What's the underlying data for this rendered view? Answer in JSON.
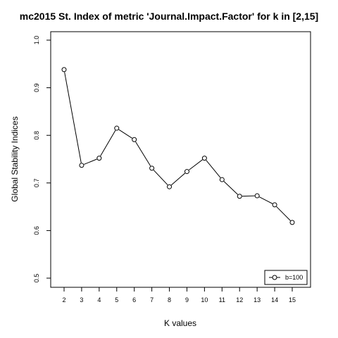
{
  "chart_data": {
    "type": "line",
    "title": "mc2015 St. Index of metric 'Journal.Impact.Factor' for k in [2,15]",
    "xlabel": "K values",
    "ylabel": "Global Stability Indices",
    "x": [
      2,
      3,
      4,
      5,
      6,
      7,
      8,
      9,
      10,
      11,
      12,
      13,
      14,
      15
    ],
    "x_tick_labels": [
      "2",
      "3",
      "4",
      "5",
      "6",
      "7",
      "8",
      "9",
      "10",
      "11",
      "12",
      "13",
      "14",
      "15"
    ],
    "series": [
      {
        "name": "b=100",
        "values": [
          0.938,
          0.737,
          0.752,
          0.815,
          0.791,
          0.731,
          0.692,
          0.724,
          0.752,
          0.707,
          0.672,
          0.673,
          0.654,
          0.617
        ]
      }
    ],
    "ylim": [
      0.5,
      1.0
    ],
    "y_ticks": [
      0.5,
      0.6,
      0.7,
      0.8,
      0.9,
      1.0
    ],
    "y_tick_labels": [
      "0.5",
      "0.6",
      "0.7",
      "0.8",
      "0.9",
      "1.0"
    ],
    "grid": false,
    "legend_position": "bottom-right",
    "line_color": "#000000",
    "marker": "open-circle"
  }
}
